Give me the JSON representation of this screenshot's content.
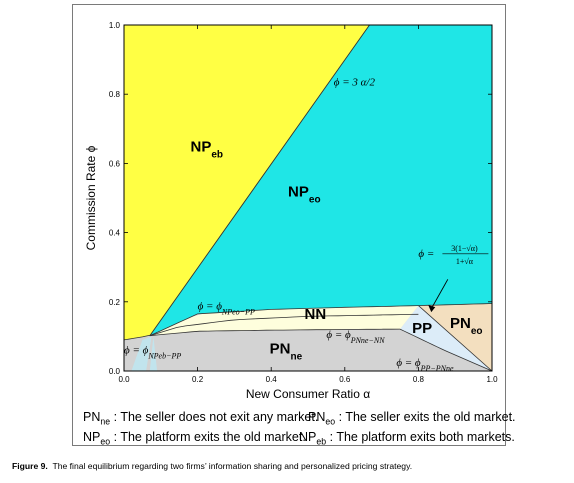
{
  "figure": {
    "caption_prefix": "Figure 9.",
    "caption_text": "The final equilibrium regarding two firms’ information sharing and personalized pricing strategy."
  },
  "legend": {
    "pn_ne": {
      "label": "PN",
      "sub": "ne",
      "text": ":  The seller does not exit any market."
    },
    "pn_eo": {
      "label": "PN",
      "sub": "eo",
      "text": ":  The seller exits the old market."
    },
    "np_eo": {
      "label": "NP",
      "sub": "eo",
      "text": ":  The platform exits the old market."
    },
    "np_eb": {
      "label": "NP",
      "sub": "eb",
      "text": ":  The platform exits both markets."
    }
  },
  "chart_data": {
    "type": "area",
    "xlabel": "New Consumer Ratio α",
    "ylabel": "Commission Rate ϕ",
    "xlim": [
      0,
      1
    ],
    "ylim": [
      0,
      1
    ],
    "xticks": [
      "0.0",
      "0.2",
      "0.4",
      "0.6",
      "0.8",
      "1.0"
    ],
    "yticks": [
      "0.0",
      "0.2",
      "0.4",
      "0.6",
      "0.8",
      "1.0"
    ],
    "grid": false,
    "colors": {
      "NP_eb": "#ffff44",
      "NP_eo": "#1fe6e6",
      "PN_eo": "#f3dfbf",
      "PN_ne": "#d3d3d3",
      "NN": "#fefedd",
      "PP": "#dcecf8"
    },
    "regions": [
      {
        "name": "NP",
        "sub": "eb",
        "label_x": 0.225,
        "label_y": 0.635
      },
      {
        "name": "NP",
        "sub": "eo",
        "label_x": 0.49,
        "label_y": 0.505
      },
      {
        "name": "NN",
        "sub": "",
        "label_x": 0.52,
        "label_y": 0.15
      },
      {
        "name": "PN",
        "sub": "ne",
        "label_x": 0.44,
        "label_y": 0.05
      },
      {
        "name": "PP",
        "sub": "",
        "label_x": 0.81,
        "label_y": 0.11
      },
      {
        "name": "PN",
        "sub": "eo",
        "label_x": 0.93,
        "label_y": 0.125
      }
    ],
    "boundaries": {
      "phi_3alpha_over_2": {
        "x": [
          0.0,
          0.667
        ],
        "y": [
          0.0,
          1.0
        ]
      },
      "upper_curve": {
        "x": [
          0.0,
          0.07,
          0.2,
          0.4,
          0.6,
          0.8,
          1.0
        ],
        "y": [
          0.09,
          0.102,
          0.165,
          0.178,
          0.184,
          0.189,
          0.195
        ]
      },
      "np_eo_pp_curve": {
        "x": [
          0.07,
          0.15,
          0.3,
          0.5,
          0.7,
          0.8
        ],
        "y": [
          0.102,
          0.128,
          0.148,
          0.158,
          0.162,
          0.164
        ]
      },
      "pn_ne_nn_curve": {
        "x": [
          0.07,
          0.2,
          0.4,
          0.6,
          0.75
        ],
        "y": [
          0.102,
          0.115,
          0.118,
          0.12,
          0.121
        ]
      },
      "pp_pn_ne_curve": {
        "x": [
          0.75,
          0.87,
          1.0
        ],
        "y": [
          0.121,
          0.06,
          0.0
        ]
      }
    },
    "annotations": [
      {
        "text": "ϕ = 3 α/2",
        "x": 0.57,
        "y": 0.825
      },
      {
        "text": "ϕ = ϕ",
        "sub": "NPeo−PP",
        "x": 0.2,
        "y": 0.178
      },
      {
        "text": "ϕ = ϕ",
        "sub": "PNne−NN",
        "x": 0.55,
        "y": 0.095
      },
      {
        "text": "ϕ = ϕ",
        "sub": "NPeb−PP",
        "x": 0.0,
        "y": 0.05
      },
      {
        "text": "ϕ = ϕ",
        "sub": "PP−PNne",
        "x": 0.74,
        "y": 0.015
      },
      {
        "text": "ϕ =",
        "formula_num": "3(1−√α)",
        "formula_den": "1+√α",
        "x": 0.8,
        "y": 0.33
      }
    ]
  }
}
